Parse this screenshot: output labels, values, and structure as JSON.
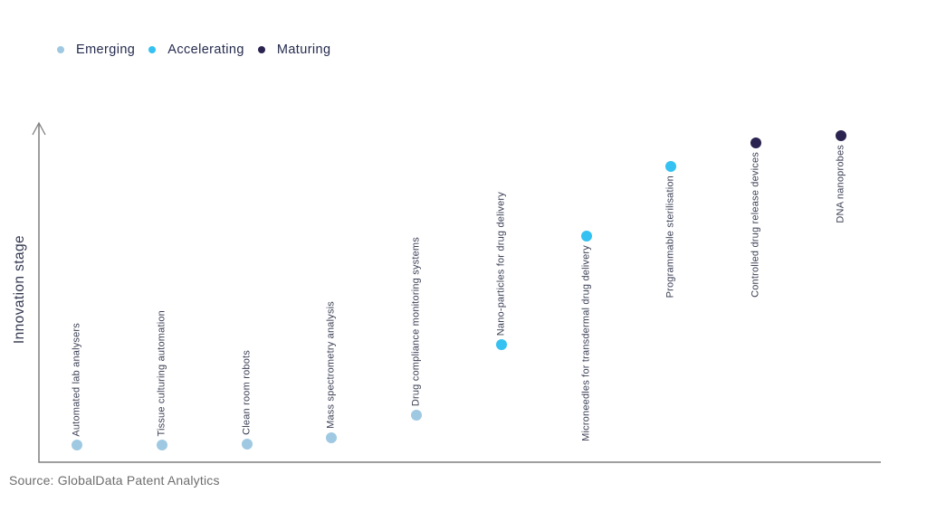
{
  "chart": {
    "y_axis_title": "Innovation stage",
    "source": "Source: GlobalData Patent Analytics"
  },
  "chart_data": {
    "type": "scatter",
    "title": "",
    "xlabel": "",
    "ylabel": "Innovation stage",
    "y_axis": {
      "numeric_labels": false,
      "range_semantic": "relative innovation stage, 0 (bottom) to 100 (top)",
      "grid": false,
      "arrow": true
    },
    "legend": {
      "position": "top-left",
      "items": [
        {
          "label": "Emerging",
          "color": "#9fc9e2"
        },
        {
          "label": "Accelerating",
          "color": "#35c1f1"
        },
        {
          "label": "Maturing",
          "color": "#2b2350"
        }
      ]
    },
    "stage_colors": {
      "Emerging": "#9fc9e2",
      "Accelerating": "#35c1f1",
      "Maturing": "#2b2350"
    },
    "points": [
      {
        "name": "Automated lab analysers",
        "stage": "Emerging",
        "level": 5,
        "label_position": "above"
      },
      {
        "name": "Tissue culturing automation",
        "stage": "Emerging",
        "level": 5,
        "label_position": "above"
      },
      {
        "name": "Clean room robots",
        "stage": "Emerging",
        "level": 5.3,
        "label_position": "above"
      },
      {
        "name": "Mass spectrometry analysis",
        "stage": "Emerging",
        "level": 7.2,
        "label_position": "above"
      },
      {
        "name": "Drug compliance monitoring systems",
        "stage": "Emerging",
        "level": 13.8,
        "label_position": "above"
      },
      {
        "name": "Nano-particles for drug delivery",
        "stage": "Accelerating",
        "level": 34.6,
        "label_position": "above"
      },
      {
        "name": "Microneedles for transdermal drug delivery",
        "stage": "Accelerating",
        "level": 66.5,
        "label_position": "below"
      },
      {
        "name": "Programmable sterilisation",
        "stage": "Accelerating",
        "level": 87,
        "label_position": "below"
      },
      {
        "name": "Controlled drug release devices",
        "stage": "Maturing",
        "level": 94,
        "label_position": "below"
      },
      {
        "name": "DNA nanoprobes",
        "stage": "Maturing",
        "level": 96,
        "label_position": "below"
      }
    ]
  }
}
